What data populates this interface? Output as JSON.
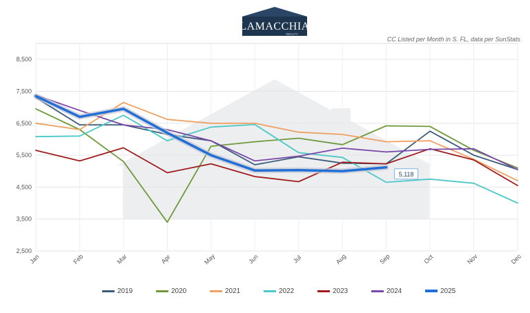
{
  "brand": {
    "name": "LAMACCHIA",
    "tagline": "REALTY"
  },
  "subtitle": "CC Listed per Month in S. FL, data per SunStats",
  "chart_data": {
    "type": "line",
    "categories": [
      "Jan",
      "Feb",
      "Mar",
      "Apr",
      "May",
      "Jun",
      "Jul",
      "Aug",
      "Sep",
      "Oct",
      "Nov",
      "Dec"
    ],
    "ylim": [
      2500,
      9000
    ],
    "yticks": [
      2500,
      3500,
      4500,
      5500,
      6500,
      7500,
      8500
    ],
    "ytick_labels": [
      "2,500",
      "3,500",
      "4,500",
      "5,500",
      "6,500",
      "7,500",
      "8,500"
    ],
    "grid": true,
    "legend_position": "bottom",
    "series": [
      {
        "name": "2019",
        "color": "#3b5b7c",
        "values": [
          7300,
          6450,
          6450,
          6150,
          5950,
          5200,
          5450,
          5250,
          5230,
          6250,
          5500,
          5050
        ]
      },
      {
        "name": "2020",
        "color": "#6e9a3c",
        "values": [
          6950,
          6300,
          5300,
          3400,
          5780,
          5920,
          6030,
          5830,
          6420,
          6400,
          5650,
          5100
        ]
      },
      {
        "name": "2021",
        "color": "#f0a060",
        "values": [
          6500,
          6300,
          7150,
          6620,
          6500,
          6500,
          6220,
          6150,
          5920,
          5950,
          5370,
          4700
        ]
      },
      {
        "name": "2022",
        "color": "#4bc8c8",
        "values": [
          6080,
          6100,
          6750,
          5950,
          6380,
          6460,
          5580,
          5430,
          4650,
          4750,
          4620,
          4000
        ]
      },
      {
        "name": "2023",
        "color": "#a01c1c",
        "values": [
          5650,
          5320,
          5730,
          4950,
          5230,
          4830,
          4670,
          5280,
          5230,
          5700,
          5350,
          4550
        ]
      },
      {
        "name": "2024",
        "color": "#7a48a8",
        "values": [
          7380,
          6900,
          6450,
          6300,
          5950,
          5320,
          5470,
          5720,
          5600,
          5680,
          5700,
          5050
        ]
      },
      {
        "name": "2025",
        "color": "#1f6fd6",
        "values": [
          7350,
          6700,
          6950,
          6200,
          5500,
          5020,
          5030,
          5000,
          5118,
          null,
          null,
          null
        ]
      }
    ],
    "annotation": {
      "series": "2025",
      "index": 8,
      "label": "5,118"
    }
  }
}
